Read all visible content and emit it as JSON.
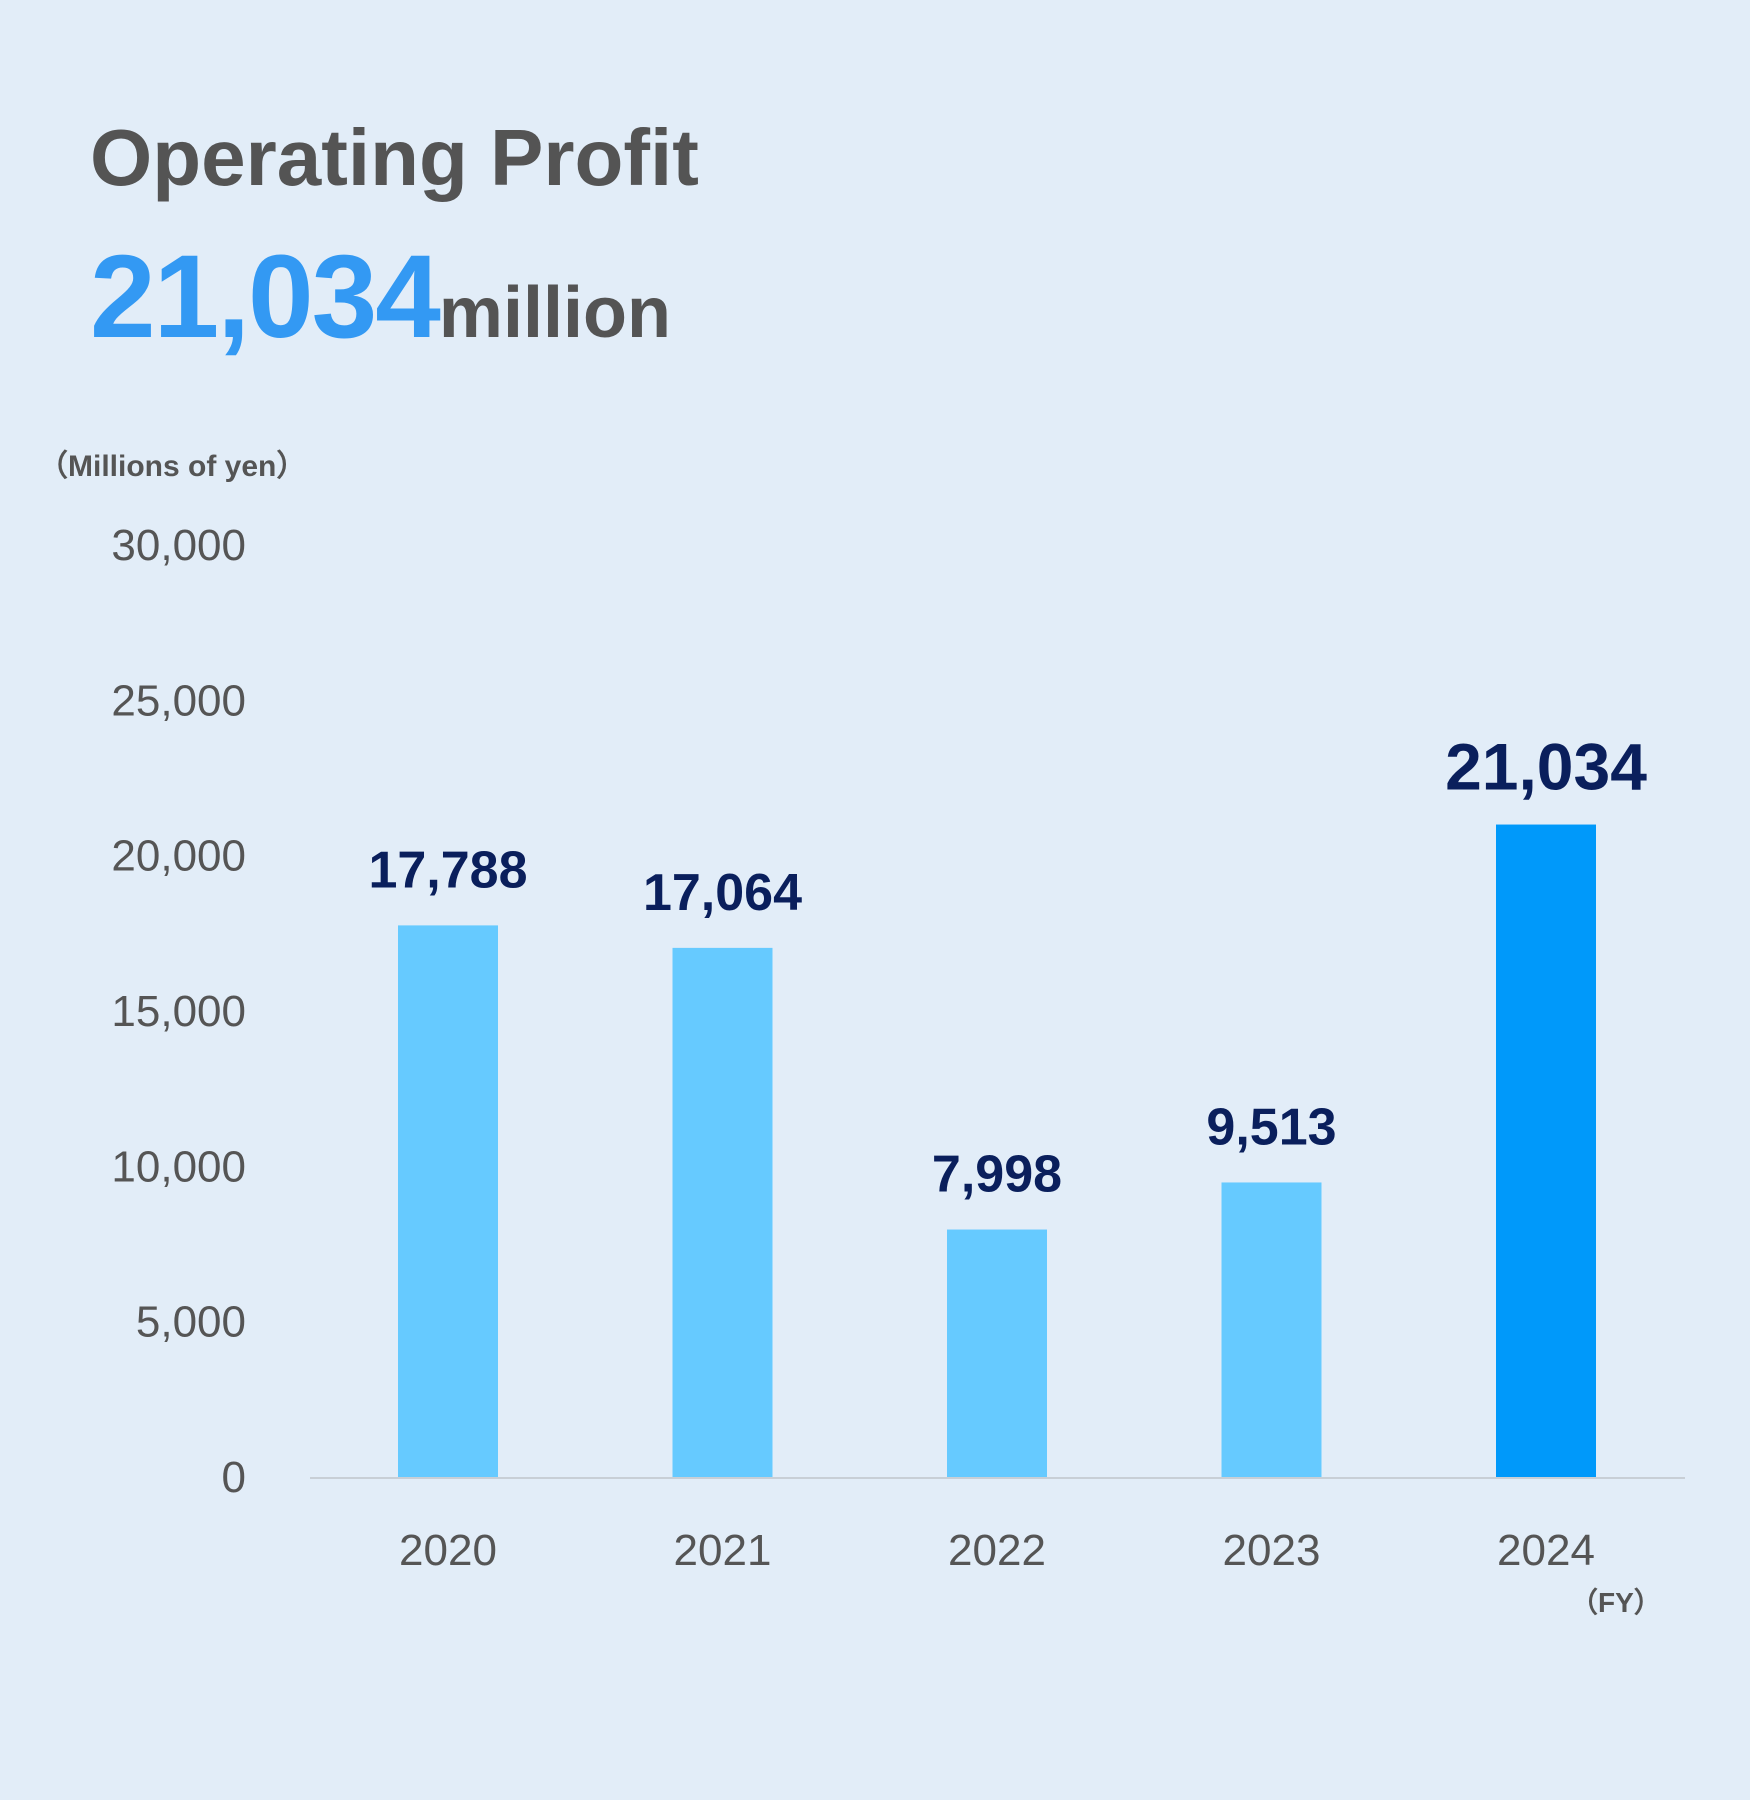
{
  "header": {
    "title": "Operating Profit",
    "highlight_value": "21,034",
    "highlight_unit": "million"
  },
  "chart_data": {
    "type": "bar",
    "unit_label": "（Millions of yen）",
    "x_unit_label": "（FY）",
    "categories": [
      "2020",
      "2021",
      "2022",
      "2023",
      "2024"
    ],
    "values": [
      17788,
      17064,
      7998,
      9513,
      21034
    ],
    "value_labels": [
      "17,788",
      "17,064",
      "7,998",
      "9,513",
      "21,034"
    ],
    "highlight_index": 4,
    "yticks": [
      0,
      5000,
      10000,
      15000,
      20000,
      25000,
      30000
    ],
    "ytick_labels": [
      "0",
      "5,000",
      "10,000",
      "15,000",
      "20,000",
      "25,000",
      "30,000"
    ],
    "ylim": [
      0,
      30000
    ],
    "grid": false,
    "colors": {
      "bar": "#66caff",
      "bar_highlight": "#0099fa",
      "value_label": "#0a1f5c",
      "tick_label": "#555555",
      "axis": "#c8cfd6",
      "unit_label": "#555555"
    }
  }
}
